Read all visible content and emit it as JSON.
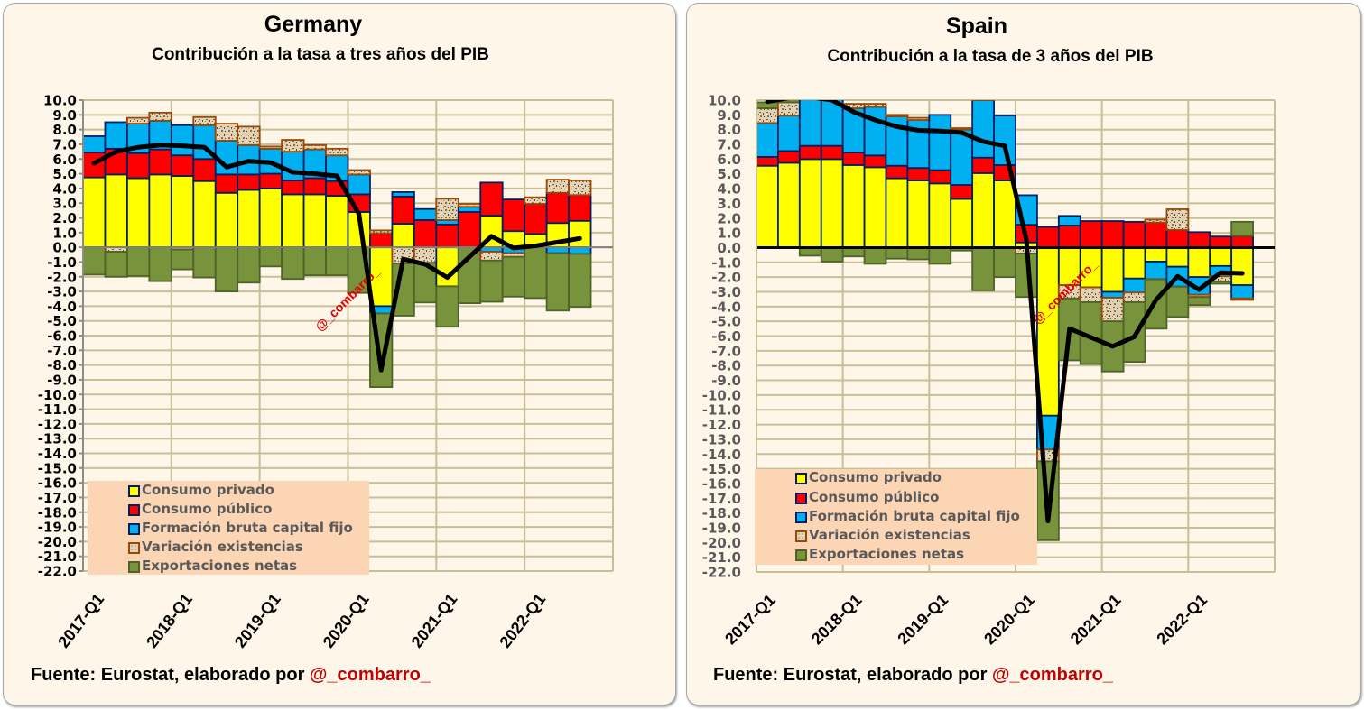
{
  "footers": [
    {
      "prefix": "Fuente: Eurostat, elaborado por ",
      "author": "@_combarro_"
    },
    {
      "prefix": "Fuente: Eurostat, elaborado por ",
      "author": "@_combarro_"
    }
  ],
  "chart_data": [
    {
      "type": "bar",
      "stacked": true,
      "title": "Germany",
      "subtitle": "Contribución a la tasa a tres años del PIB",
      "xlabel": "",
      "ylabel": "",
      "ylim": [
        -22,
        10
      ],
      "y_step": 1,
      "grid": true,
      "legend_position": "bottom-left",
      "watermark": "@_combarro_",
      "ytick_labels": [
        "10.0",
        "9.0",
        "8.0",
        "7.0",
        "6.0",
        "5.0",
        "4.0",
        "3.0",
        "2.0",
        "1.0",
        "0.0",
        "-1.0",
        "-2.0",
        "-3.0",
        "-4.0",
        "-5.0",
        "-6.0",
        "-7.0",
        "-8.0",
        "-9.0",
        "-10.0",
        "-11.0",
        "-12.0",
        "-13.0",
        "-14.0",
        "-15.0",
        "-16.0",
        "-17.0",
        "-18.0",
        "-19.0",
        "-20.0",
        "-21.0",
        "-22.0"
      ],
      "xtick_labels": [
        "2017-Q1",
        "2018-Q1",
        "2019-Q1",
        "2020-Q1",
        "2021-Q1",
        "2022-Q1"
      ],
      "categories": [
        "2017-Q1",
        "2017-Q2",
        "2017-Q3",
        "2017-Q4",
        "2018-Q1",
        "2018-Q2",
        "2018-Q3",
        "2018-Q4",
        "2019-Q1",
        "2019-Q2",
        "2019-Q3",
        "2019-Q4",
        "2020-Q1",
        "2020-Q2",
        "2020-Q3",
        "2020-Q4",
        "2021-Q1",
        "2021-Q2",
        "2021-Q3",
        "2021-Q4",
        "2022-Q1",
        "2022-Q2",
        "2022-Q3",
        "2022-Q4"
      ],
      "series": [
        {
          "key": "consumo_privado",
          "name": "Consumo privado",
          "color": "#FFFF00",
          "border": "#002060",
          "values": [
            4.75,
            4.95,
            4.7,
            4.95,
            4.85,
            4.5,
            3.7,
            3.9,
            4.0,
            3.6,
            3.6,
            3.5,
            2.4,
            -4.0,
            1.6,
            0.0,
            -2.65,
            0.0,
            2.15,
            1.1,
            0.9,
            1.65,
            1.8,
            null
          ]
        },
        {
          "key": "consumo_publico",
          "name": "Consumo público",
          "color": "#FF0000",
          "border": "#002060",
          "values": [
            1.7,
            1.75,
            1.7,
            1.7,
            1.4,
            1.5,
            1.25,
            1.05,
            1.0,
            0.95,
            1.1,
            1.0,
            1.2,
            0.95,
            1.85,
            1.85,
            1.55,
            2.4,
            2.25,
            2.15,
            2.05,
            2.05,
            1.75,
            null
          ]
        },
        {
          "key": "fbcf",
          "name": "Formación bruta capital fijo",
          "color": "#00B0F0",
          "border": "#002060",
          "values": [
            1.1,
            1.8,
            2.0,
            1.95,
            2.05,
            2.3,
            2.3,
            2.0,
            1.7,
            1.95,
            1.95,
            1.75,
            1.35,
            -0.5,
            0.3,
            0.75,
            0.3,
            0.35,
            -0.3,
            -0.4,
            0.0,
            -0.4,
            -0.45,
            null
          ]
        },
        {
          "key": "variacion_existencias",
          "name": "Variación existencias",
          "color": "#E3D3B5",
          "border": "#984807",
          "pattern": true,
          "values": [
            0.0,
            -0.3,
            0.4,
            0.55,
            -0.15,
            0.55,
            1.15,
            1.25,
            0.15,
            0.8,
            0.3,
            0.45,
            0.3,
            0.2,
            -1.1,
            -1.05,
            1.45,
            0.2,
            -0.6,
            -0.25,
            0.45,
            0.9,
            1.0,
            null
          ]
        },
        {
          "key": "exportaciones_netas",
          "name": "Exportaciones netas",
          "color": "#77933C",
          "border": "#4F6228",
          "values": [
            -1.85,
            -1.7,
            -1.95,
            -2.3,
            -1.35,
            -2.05,
            -3.0,
            -2.4,
            -1.3,
            -2.15,
            -1.9,
            -1.9,
            -3.1,
            -5.0,
            -3.55,
            -2.7,
            -2.75,
            -3.8,
            -2.8,
            -2.7,
            -3.45,
            -3.9,
            -3.6,
            null
          ]
        }
      ],
      "line": {
        "type": "line",
        "color": "#000000",
        "values": [
          5.7,
          6.5,
          6.8,
          6.95,
          6.9,
          6.8,
          5.45,
          5.85,
          5.75,
          5.1,
          5.0,
          4.85,
          2.25,
          -8.35,
          -0.8,
          -1.15,
          -2.05,
          -0.65,
          0.75,
          -0.05,
          0.1,
          0.35,
          0.6,
          null
        ]
      }
    },
    {
      "type": "bar",
      "stacked": true,
      "title": "Spain",
      "subtitle": "Contribución a la tasa de 3 años del PIB",
      "xlabel": "",
      "ylabel": "",
      "ylim": [
        -22,
        10
      ],
      "y_step": 1,
      "grid": true,
      "legend_position": "bottom-left",
      "watermark": "@_combarro_",
      "ytick_labels": [
        "10.0",
        "9.0",
        "8.0",
        "7.0",
        "6.0",
        "5.0",
        "4.0",
        "3.0",
        "2.0",
        "1.0",
        "0.0",
        "-1.0",
        "-2.0",
        "-3.0",
        "-4.0",
        "-5.0",
        "-6.0",
        "-7.0",
        "-8.0",
        "-9.0",
        "-10.0",
        "-11.0",
        "-12.0",
        "-13.0",
        "-14.0",
        "-15.0",
        "-16.0",
        "-17.0",
        "-18.0",
        "-19.0",
        "-20.0",
        "-21.0",
        "-22.0"
      ],
      "xtick_labels": [
        "2017-Q1",
        "2018-Q1",
        "2019-Q1",
        "2020-Q1",
        "2021-Q1",
        "2022-Q1"
      ],
      "categories": [
        "2017-Q1",
        "2017-Q2",
        "2017-Q3",
        "2017-Q4",
        "2018-Q1",
        "2018-Q2",
        "2018-Q3",
        "2018-Q4",
        "2019-Q1",
        "2019-Q2",
        "2019-Q3",
        "2019-Q4",
        "2020-Q1",
        "2020-Q2",
        "2020-Q3",
        "2020-Q4",
        "2021-Q1",
        "2021-Q2",
        "2021-Q3",
        "2021-Q4",
        "2022-Q1",
        "2022-Q2",
        "2022-Q3",
        "2022-Q4"
      ],
      "series": [
        {
          "key": "consumo_privado",
          "name": "Consumo privado",
          "color": "#FFFF00",
          "border": "#002060",
          "values": [
            5.55,
            5.75,
            6.0,
            6.0,
            5.6,
            5.45,
            4.7,
            4.55,
            4.35,
            3.3,
            5.05,
            4.55,
            0.35,
            -11.4,
            -2.55,
            -2.7,
            -3.0,
            -2.1,
            -0.95,
            -1.3,
            -2.0,
            -1.25,
            -2.55,
            null
          ]
        },
        {
          "key": "consumo_publico",
          "name": "Consumo público",
          "color": "#FF0000",
          "border": "#002060",
          "values": [
            0.6,
            0.8,
            0.9,
            0.9,
            0.85,
            0.8,
            0.85,
            0.85,
            0.9,
            0.95,
            1.05,
            1.05,
            1.2,
            1.4,
            1.5,
            1.8,
            1.8,
            1.75,
            1.7,
            1.2,
            1.05,
            0.75,
            0.8,
            null
          ]
        },
        {
          "key": "fbcf",
          "name": "Formación bruta capital fijo",
          "color": "#00B0F0",
          "border": "#002060",
          "values": [
            2.3,
            2.4,
            3.85,
            4.05,
            3.0,
            3.3,
            3.35,
            3.25,
            3.75,
            3.75,
            3.9,
            3.35,
            2.0,
            -2.3,
            0.65,
            0.0,
            -0.4,
            -0.95,
            -1.2,
            -1.35,
            -1.2,
            -0.7,
            -0.9,
            null
          ]
        },
        {
          "key": "variacion_existencias",
          "name": "Variación existencias",
          "color": "#E3D3B5",
          "border": "#984807",
          "pattern": true,
          "values": [
            1.0,
            0.9,
            0.0,
            0.0,
            0.3,
            0.2,
            0.1,
            0.15,
            0.0,
            0.1,
            0.1,
            0.0,
            -0.4,
            -0.8,
            -0.9,
            -1.0,
            -1.6,
            -0.65,
            0.2,
            1.4,
            -0.15,
            -0.35,
            -0.1,
            null
          ]
        },
        {
          "key": "exportaciones_netas",
          "name": "Exportaciones netas",
          "color": "#77933C",
          "border": "#4F6228",
          "values": [
            0.4,
            0.2,
            -0.55,
            -0.95,
            -0.6,
            -1.1,
            -0.75,
            -0.8,
            -1.1,
            -0.2,
            -2.9,
            -2.0,
            -2.95,
            -5.35,
            -4.2,
            -4.2,
            -3.4,
            -4.05,
            -3.35,
            -2.05,
            -0.55,
            -0.15,
            0.95,
            null
          ]
        }
      ],
      "line": {
        "type": "line",
        "color": "#000000",
        "values": [
          9.9,
          10.15,
          10.2,
          10.0,
          9.2,
          8.65,
          8.2,
          7.95,
          7.9,
          7.8,
          7.2,
          6.9,
          0.5,
          -18.55,
          -5.5,
          -6.1,
          -6.7,
          -6.05,
          -3.55,
          -1.95,
          -2.85,
          -1.7,
          -1.75,
          null
        ]
      }
    }
  ]
}
